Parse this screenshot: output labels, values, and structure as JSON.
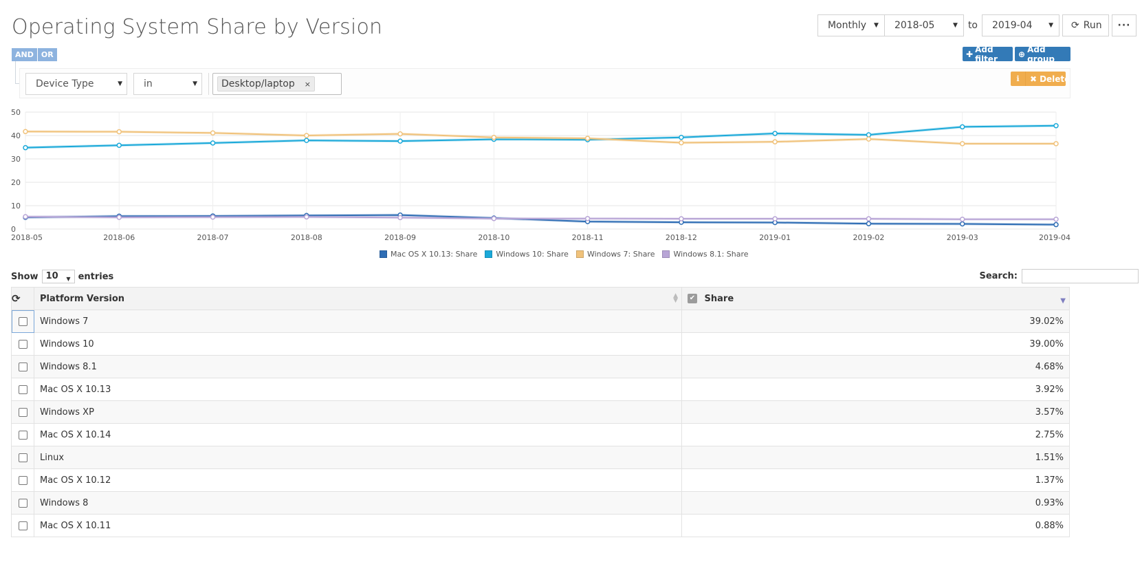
{
  "title": "Operating System Share by Version",
  "controls": {
    "period": "Monthly",
    "from": "2018-05",
    "to_label": "to",
    "to": "2019-04",
    "run_label": "Run",
    "more_label": "···"
  },
  "filters": {
    "and_label": "AND",
    "or_label": "OR",
    "add_filter_label": "Add filter",
    "add_group_label": "Add group",
    "delete_label": "Delete",
    "field": "Device Type",
    "operator": "in",
    "value_tag": "Desktop/laptop",
    "tag_remove": "×"
  },
  "chart_data": {
    "type": "line",
    "x": [
      "2018-05",
      "2018-06",
      "2018-07",
      "2018-08",
      "2018-09",
      "2018-10",
      "2018-11",
      "2018-12",
      "2019-01",
      "2019-02",
      "2019-03",
      "2019-04"
    ],
    "ylim": [
      0,
      50
    ],
    "yticks": [
      0,
      10,
      20,
      30,
      40,
      50
    ],
    "grid": true,
    "legend_position": "bottom",
    "series": [
      {
        "name": "Mac OS X 10.13: Share",
        "color": "#2e6db4",
        "values": [
          5.0,
          5.5,
          5.6,
          5.8,
          6.0,
          4.7,
          3.2,
          2.9,
          2.8,
          2.3,
          2.2,
          1.9
        ]
      },
      {
        "name": "Windows 10: Share",
        "color": "#1ba9d9",
        "values": [
          34.8,
          35.8,
          36.8,
          37.9,
          37.6,
          38.4,
          38.2,
          39.2,
          40.9,
          40.3,
          43.7,
          44.2
        ]
      },
      {
        "name": "Windows 7: Share",
        "color": "#f0c27b",
        "values": [
          41.7,
          41.6,
          41.1,
          40.0,
          40.7,
          39.2,
          38.8,
          36.9,
          37.3,
          38.5,
          36.5,
          36.5
        ]
      },
      {
        "name": "Windows 8.1: Share",
        "color": "#b8a5d6",
        "values": [
          5.3,
          5.0,
          5.1,
          5.2,
          4.9,
          4.5,
          4.5,
          4.4,
          4.4,
          4.4,
          4.2,
          4.2
        ]
      }
    ]
  },
  "table": {
    "show_label": "Show",
    "length_value": "10",
    "entries_label": "entries",
    "search_label": "Search:",
    "col_platform": "Platform Version",
    "col_share": "Share",
    "rows": [
      {
        "platform": "Windows 7",
        "share": "39.02%"
      },
      {
        "platform": "Windows 10",
        "share": "39.00%"
      },
      {
        "platform": "Windows 8.1",
        "share": "4.68%"
      },
      {
        "platform": "Mac OS X 10.13",
        "share": "3.92%"
      },
      {
        "platform": "Windows XP",
        "share": "3.57%"
      },
      {
        "platform": "Mac OS X 10.14",
        "share": "2.75%"
      },
      {
        "platform": "Linux",
        "share": "1.51%"
      },
      {
        "platform": "Mac OS X 10.12",
        "share": "1.37%"
      },
      {
        "platform": "Windows 8",
        "share": "0.93%"
      },
      {
        "platform": "Mac OS X 10.11",
        "share": "0.88%"
      }
    ]
  }
}
